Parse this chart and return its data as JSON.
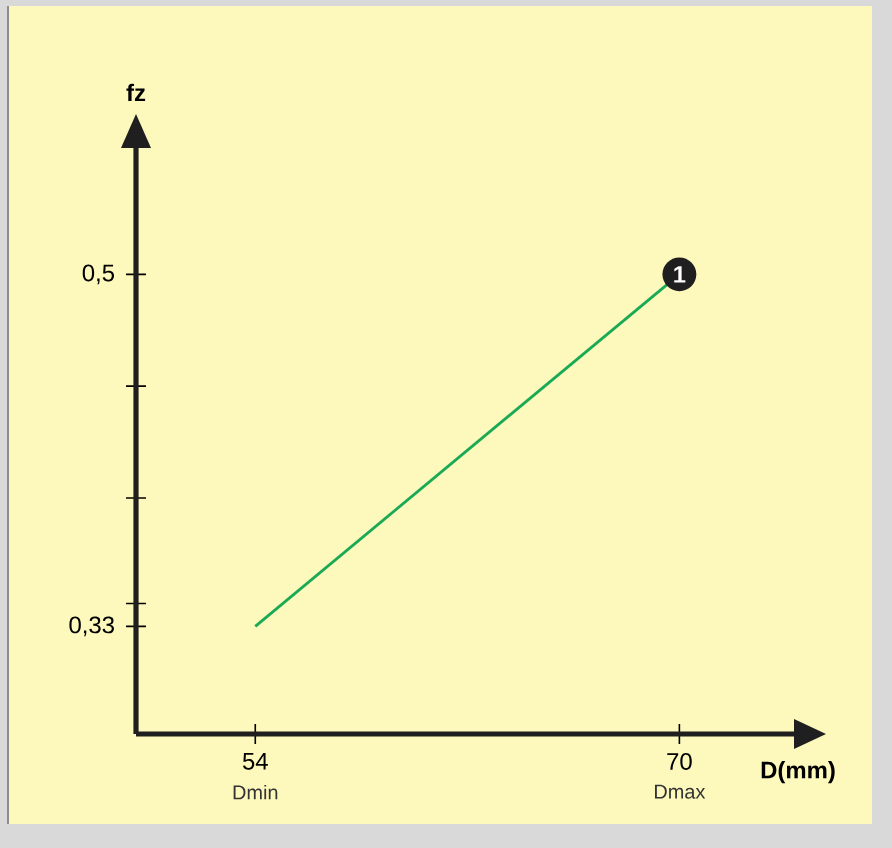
{
  "chart_data": {
    "type": "line",
    "xlabel": "D(mm)",
    "ylabel": "fz",
    "x": [
      54,
      70
    ],
    "values": [
      0.33,
      0.5
    ],
    "color": "#1aaa55",
    "xlim": [
      49.5,
      74.4
    ],
    "ylim": [
      0.278,
      0.562
    ],
    "xticks": [
      54,
      70
    ],
    "yticks": [
      {
        "value": 0.33,
        "label": "0,33"
      },
      {
        "value": 0.341,
        "label": null
      },
      {
        "value": 0.392,
        "label": null
      },
      {
        "value": 0.446,
        "label": null
      },
      {
        "value": 0.5,
        "label": "0,5"
      }
    ],
    "annotations": [
      "Dmin",
      "Dmax",
      {
        "text": "1",
        "x": 70,
        "y": 0.5
      }
    ]
  }
}
